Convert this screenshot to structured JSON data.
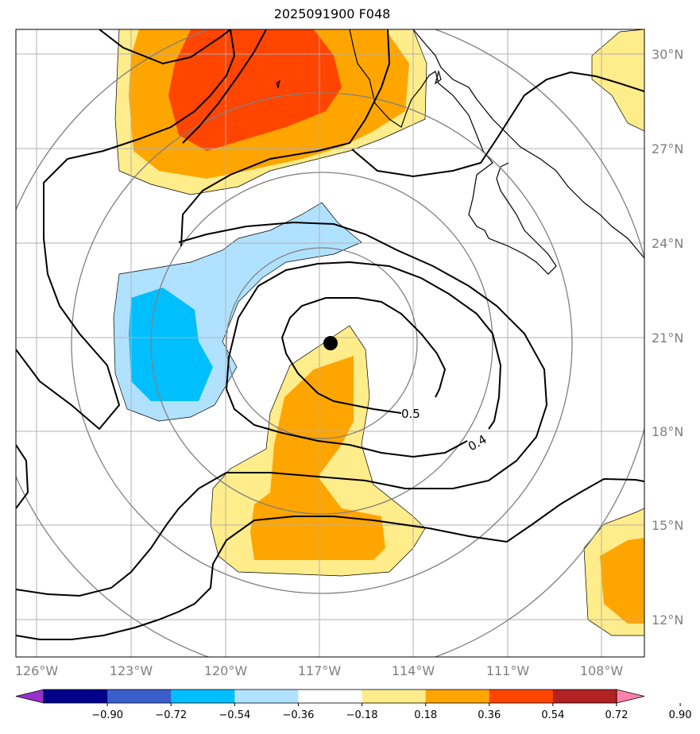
{
  "title": "2025091900 F048",
  "axes": {
    "lon_ticks": [
      "126°W",
      "123°W",
      "120°W",
      "117°W",
      "114°W",
      "111°W",
      "108°W"
    ],
    "lat_ticks": [
      "30°N",
      "27°N",
      "24°N",
      "21°N",
      "18°N",
      "15°N",
      "12°N"
    ]
  },
  "contour_labels": [
    "0.5",
    "0.4"
  ],
  "colorbar": {
    "ticks": [
      "−0.90",
      "−0.72",
      "−0.54",
      "−0.36",
      "−0.18",
      "0.18",
      "0.36",
      "0.54",
      "0.72",
      "0.90"
    ],
    "colors": [
      "#9932CC",
      "#00008B",
      "#3A5FCD",
      "#00BFFF",
      "#B0E2FF",
      "#FFFFFF",
      "#FFEC8B",
      "#FFA500",
      "#FF4500",
      "#B22222",
      "#FF82AB"
    ]
  },
  "center_marker": {
    "lon": -116.6,
    "lat": 20.8
  }
}
